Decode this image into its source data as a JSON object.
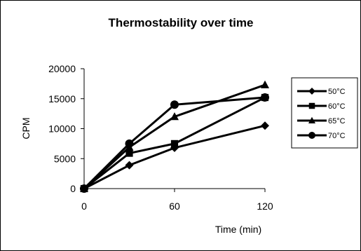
{
  "chart_data": {
    "type": "line",
    "title": "Thermostability over time",
    "xlabel": "Time (min)",
    "ylabel": "CPM",
    "x": [
      0,
      30,
      60,
      120
    ],
    "x_ticks": [
      "0",
      "60",
      "120"
    ],
    "y_ticks": [
      "0",
      "5000",
      "10000",
      "15000",
      "20000"
    ],
    "xlim": [
      0,
      120
    ],
    "ylim": [
      0,
      20000
    ],
    "grid": false,
    "legend_position": "right",
    "series": [
      {
        "name": "50°C",
        "marker": "diamond",
        "values": [
          0,
          3900,
          6800,
          10500
        ]
      },
      {
        "name": "60°C",
        "marker": "square",
        "values": [
          0,
          5900,
          7500,
          15200
        ]
      },
      {
        "name": "65°C",
        "marker": "triangle",
        "values": [
          0,
          6900,
          12000,
          17300
        ]
      },
      {
        "name": "70°C",
        "marker": "circle",
        "values": [
          0,
          7500,
          14000,
          15200
        ]
      }
    ],
    "colors": {
      "line": "#000000",
      "background": "#ffffff",
      "border": "#000000"
    }
  }
}
